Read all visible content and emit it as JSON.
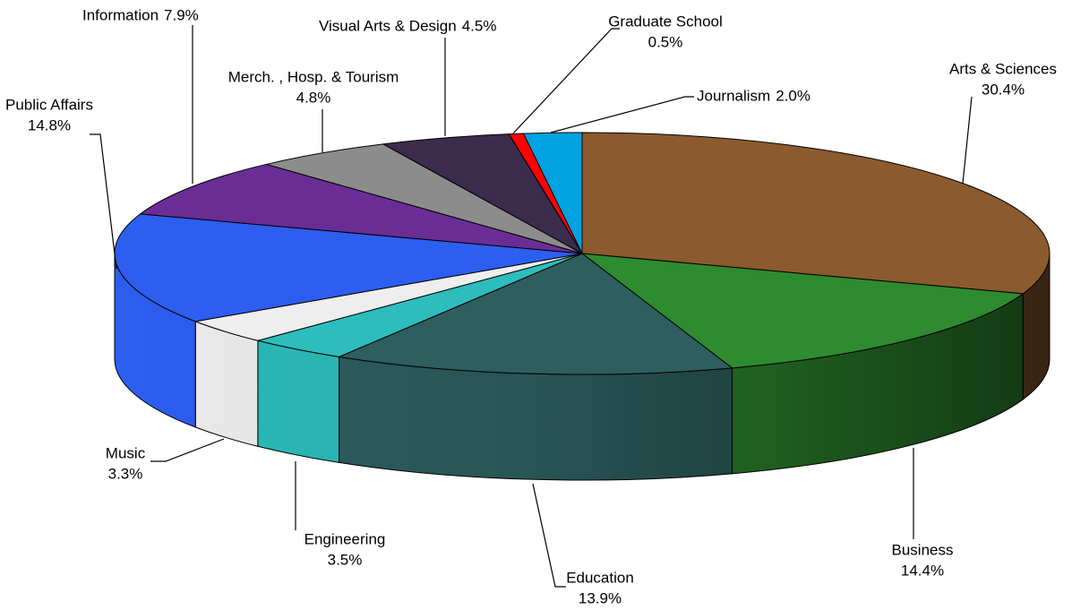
{
  "chart_data": {
    "type": "pie",
    "categories": [
      "Arts & Sciences",
      "Business",
      "Education",
      "Engineering",
      "Music",
      "Public Affairs",
      "Information",
      "Merch. , Hosp. & Tourism",
      "Visual Arts & Design",
      "Graduate School",
      "Journalism"
    ],
    "values": [
      30.4,
      14.4,
      13.9,
      3.5,
      3.3,
      14.8,
      7.9,
      4.8,
      4.5,
      0.5,
      2.0
    ],
    "value_labels": [
      "30.4%",
      "14.4%",
      "13.9%",
      "3.5%",
      "3.3%",
      "14.8%",
      "7.9%",
      "4.8%",
      "4.5%",
      "0.5%",
      "2.0%"
    ],
    "colors": [
      "#8b5a2e",
      "#2e8b30",
      "#2e5e5e",
      "#2dbdbd",
      "#eeeeee",
      "#2d5ef0",
      "#6a2d96",
      "#8c8c8c",
      "#3b2b4d",
      "#ff0000",
      "#00a2e2"
    ]
  }
}
